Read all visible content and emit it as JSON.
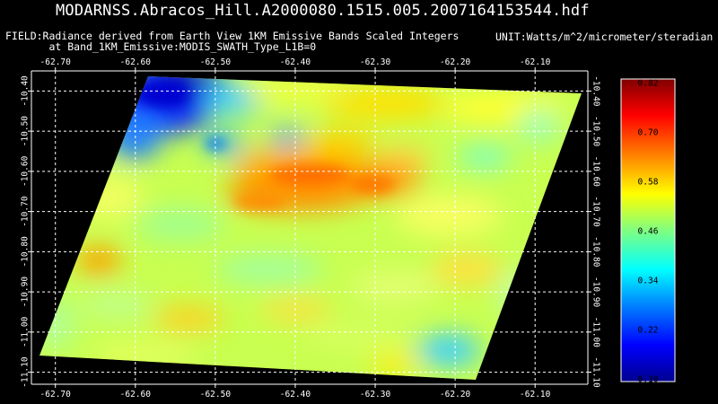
{
  "title": "MODARNSS.Abracos_Hill.A2000080.1515.005.2007164153544.hdf",
  "field_line1": "FIELD:Radiance derived from Earth View 1KM Emissive Bands Scaled Integers",
  "field_line2": "at Band_1KM_Emissive:MODIS_SWATH_Type_L1B=0",
  "unit": "UNIT:Watts/m^2/micrometer/steradian",
  "chart_data": {
    "type": "heatmap",
    "x_ticks": [
      "-62.70",
      "-62.60",
      "-62.50",
      "-62.40",
      "-62.30",
      "-62.20",
      "-62.10"
    ],
    "x_values": [
      -62.7,
      -62.6,
      -62.5,
      -62.4,
      -62.3,
      -62.2,
      -62.1
    ],
    "xlim": [
      -62.73,
      -62.034
    ],
    "y_ticks": [
      "-10.40",
      "-10.50",
      "-10.60",
      "-10.70",
      "-10.80",
      "-10.90",
      "-11.00",
      "-11.10"
    ],
    "y_values": [
      -10.4,
      -10.5,
      -10.6,
      -10.7,
      -10.8,
      -10.9,
      -11.0,
      -11.1
    ],
    "ylim": [
      -10.35,
      -11.13
    ],
    "colorbar": {
      "ticks": [
        "0.82",
        "0.70",
        "0.58",
        "0.46",
        "0.34",
        "0.22",
        "0.10"
      ],
      "values": [
        0.82,
        0.7,
        0.58,
        0.46,
        0.34,
        0.22,
        0.1
      ],
      "range": [
        0.1,
        0.82
      ]
    },
    "grid": true,
    "colormap": [
      "#00008f",
      "#0000ff",
      "#0080ff",
      "#00ffff",
      "#80ff80",
      "#ffff00",
      "#ff8000",
      "#ff0000",
      "#800000"
    ]
  }
}
